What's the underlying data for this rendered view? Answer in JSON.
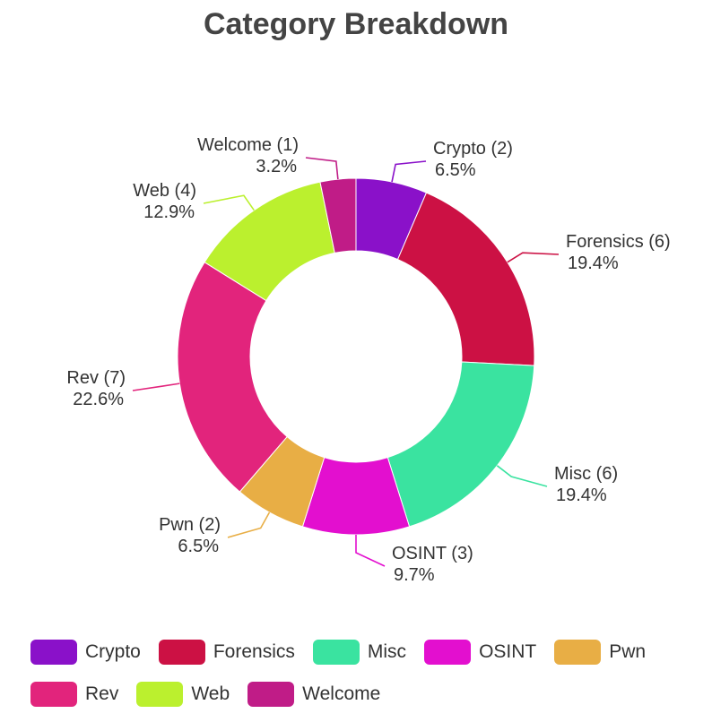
{
  "chart_data": {
    "type": "pie",
    "title": "Category Breakdown",
    "donut": true,
    "slices": [
      {
        "name": "Crypto",
        "value": 2,
        "percent": "6.5%",
        "label": "Crypto (2)",
        "color": "#8a11c9"
      },
      {
        "name": "Forensics",
        "value": 6,
        "percent": "19.4%",
        "label": "Forensics (6)",
        "color": "#cc1144"
      },
      {
        "name": "Misc",
        "value": 6,
        "percent": "19.4%",
        "label": "Misc (6)",
        "color": "#3ae3a0"
      },
      {
        "name": "OSINT",
        "value": 3,
        "percent": "9.7%",
        "label": "OSINT (3)",
        "color": "#e30fcf"
      },
      {
        "name": "Pwn",
        "value": 2,
        "percent": "6.5%",
        "label": "Pwn (2)",
        "color": "#e8ae45"
      },
      {
        "name": "Rev",
        "value": 7,
        "percent": "22.6%",
        "label": "Rev (7)",
        "color": "#e2247c"
      },
      {
        "name": "Web",
        "value": 4,
        "percent": "12.9%",
        "label": "Web (4)",
        "color": "#bbf02e"
      },
      {
        "name": "Welcome",
        "value": 1,
        "percent": "3.2%",
        "label": "Welcome (1)",
        "color": "#c01c87"
      }
    ],
    "legend_position": "bottom"
  }
}
